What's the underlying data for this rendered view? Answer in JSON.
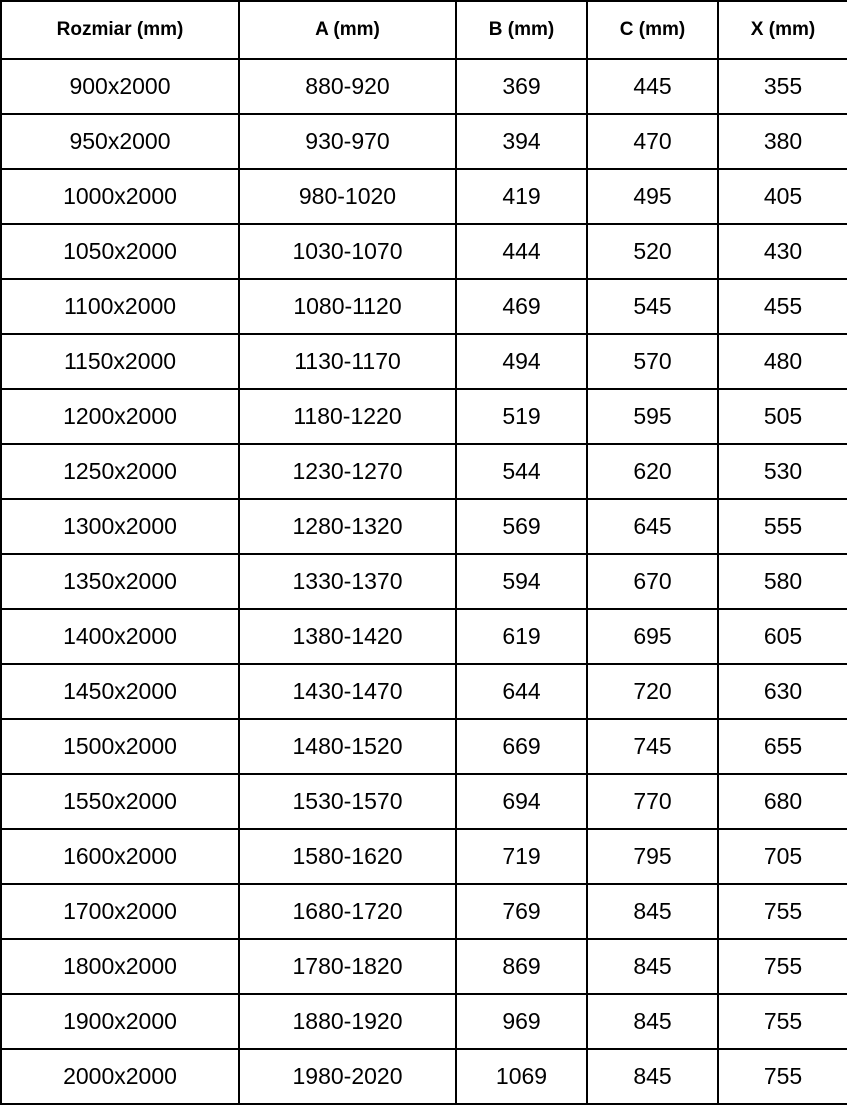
{
  "table": {
    "headers": [
      "Rozmiar (mm)",
      "A (mm)",
      "B (mm)",
      "C (mm)",
      "X (mm)"
    ],
    "rows": [
      [
        "900x2000",
        "880-920",
        "369",
        "445",
        "355"
      ],
      [
        "950x2000",
        "930-970",
        "394",
        "470",
        "380"
      ],
      [
        "1000x2000",
        "980-1020",
        "419",
        "495",
        "405"
      ],
      [
        "1050x2000",
        "1030-1070",
        "444",
        "520",
        "430"
      ],
      [
        "1100x2000",
        "1080-1120",
        "469",
        "545",
        "455"
      ],
      [
        "1150x2000",
        "1130-1170",
        "494",
        "570",
        "480"
      ],
      [
        "1200x2000",
        "1180-1220",
        "519",
        "595",
        "505"
      ],
      [
        "1250x2000",
        "1230-1270",
        "544",
        "620",
        "530"
      ],
      [
        "1300x2000",
        "1280-1320",
        "569",
        "645",
        "555"
      ],
      [
        "1350x2000",
        "1330-1370",
        "594",
        "670",
        "580"
      ],
      [
        "1400x2000",
        "1380-1420",
        "619",
        "695",
        "605"
      ],
      [
        "1450x2000",
        "1430-1470",
        "644",
        "720",
        "630"
      ],
      [
        "1500x2000",
        "1480-1520",
        "669",
        "745",
        "655"
      ],
      [
        "1550x2000",
        "1530-1570",
        "694",
        "770",
        "680"
      ],
      [
        "1600x2000",
        "1580-1620",
        "719",
        "795",
        "705"
      ],
      [
        "1700x2000",
        "1680-1720",
        "769",
        "845",
        "755"
      ],
      [
        "1800x2000",
        "1780-1820",
        "869",
        "845",
        "755"
      ],
      [
        "1900x2000",
        "1880-1920",
        "969",
        "845",
        "755"
      ],
      [
        "2000x2000",
        "1980-2020",
        "1069",
        "845",
        "755"
      ]
    ],
    "colors": {
      "border": "#000000",
      "text": "#000000",
      "background": "#ffffff"
    }
  }
}
